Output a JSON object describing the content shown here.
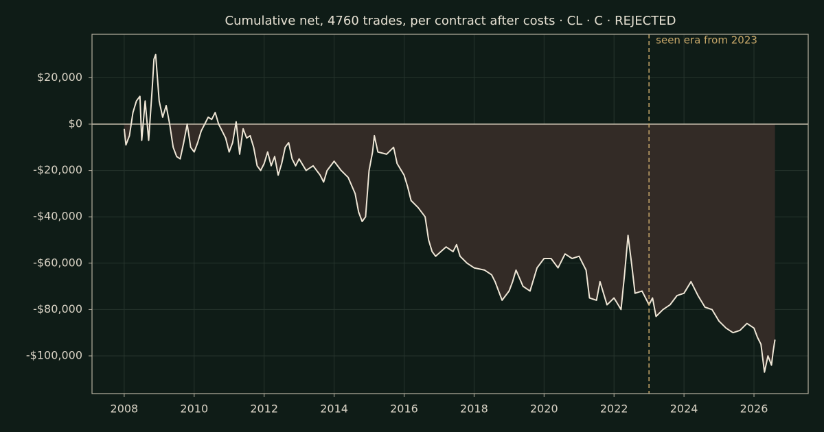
{
  "chart_data": {
    "type": "line",
    "title": "Cumulative net, 4760 trades, per contract after costs  ·  CL · C · REJECTED",
    "x": [
      2008.0,
      2008.05,
      2008.15,
      2008.25,
      2008.35,
      2008.45,
      2008.5,
      2008.6,
      2008.7,
      2008.8,
      2008.85,
      2008.9,
      2009.0,
      2009.1,
      2009.2,
      2009.3,
      2009.4,
      2009.5,
      2009.6,
      2009.7,
      2009.8,
      2009.9,
      2010.0,
      2010.1,
      2010.2,
      2010.3,
      2010.4,
      2010.5,
      2010.6,
      2010.7,
      2010.8,
      2010.9,
      2011.0,
      2011.1,
      2011.2,
      2011.3,
      2011.4,
      2011.5,
      2011.6,
      2011.7,
      2011.8,
      2011.9,
      2012.0,
      2012.1,
      2012.2,
      2012.3,
      2012.4,
      2012.5,
      2012.6,
      2012.7,
      2012.8,
      2012.9,
      2013.0,
      2013.2,
      2013.4,
      2013.6,
      2013.7,
      2013.8,
      2014.0,
      2014.2,
      2014.4,
      2014.6,
      2014.7,
      2014.8,
      2014.9,
      2015.0,
      2015.1,
      2015.15,
      2015.25,
      2015.5,
      2015.7,
      2015.8,
      2016.0,
      2016.1,
      2016.2,
      2016.4,
      2016.6,
      2016.7,
      2016.8,
      2016.9,
      2017.2,
      2017.4,
      2017.5,
      2017.6,
      2017.8,
      2018.0,
      2018.3,
      2018.5,
      2018.6,
      2018.8,
      2019.0,
      2019.1,
      2019.2,
      2019.4,
      2019.6,
      2019.8,
      2020.0,
      2020.2,
      2020.4,
      2020.6,
      2020.8,
      2021.0,
      2021.2,
      2021.3,
      2021.5,
      2021.6,
      2021.8,
      2022.0,
      2022.2,
      2022.3,
      2022.4,
      2022.5,
      2022.6,
      2022.8,
      2023.0,
      2023.1,
      2023.2,
      2023.4,
      2023.6,
      2023.8,
      2024.0,
      2024.2,
      2024.4,
      2024.6,
      2024.8,
      2025.0,
      2025.2,
      2025.4,
      2025.6,
      2025.8,
      2026.0,
      2026.1,
      2026.2,
      2026.3,
      2026.4,
      2026.5,
      2026.55,
      2026.6
    ],
    "series": [
      {
        "name": "Cumulative net",
        "color": "#efe6d6",
        "values": [
          -2000,
          -9000,
          -5000,
          5000,
          10000,
          12000,
          -7000,
          10000,
          -7000,
          15000,
          28000,
          30000,
          10000,
          3000,
          8000,
          0,
          -10000,
          -14000,
          -15000,
          -8000,
          0,
          -10000,
          -12000,
          -8000,
          -3000,
          0,
          3000,
          2000,
          5000,
          0,
          -3000,
          -6000,
          -12000,
          -8000,
          1000,
          -13000,
          -2000,
          -6000,
          -5000,
          -10000,
          -18000,
          -20000,
          -17000,
          -12000,
          -18000,
          -14000,
          -22000,
          -17000,
          -10000,
          -8000,
          -15000,
          -18000,
          -15000,
          -20000,
          -18000,
          -22000,
          -25000,
          -20000,
          -16000,
          -20000,
          -23000,
          -30000,
          -38000,
          -42000,
          -40000,
          -20000,
          -12000,
          -5000,
          -12000,
          -13000,
          -10000,
          -17000,
          -22000,
          -27000,
          -33000,
          -36000,
          -40000,
          -50000,
          -55000,
          -57000,
          -53000,
          -55000,
          -52000,
          -57000,
          -60000,
          -62000,
          -63000,
          -65000,
          -68000,
          -76000,
          -72000,
          -68000,
          -63000,
          -70000,
          -72000,
          -62000,
          -58000,
          -58000,
          -62000,
          -56000,
          -58000,
          -57000,
          -63000,
          -75000,
          -76000,
          -68000,
          -78000,
          -75000,
          -80000,
          -65000,
          -48000,
          -60000,
          -73000,
          -72000,
          -78000,
          -75000,
          -83000,
          -80000,
          -78000,
          -74000,
          -73000,
          -68000,
          -74000,
          -79000,
          -80000,
          -85000,
          -88000,
          -90000,
          -89000,
          -86000,
          -88000,
          -92000,
          -95000,
          -107000,
          -100000,
          -104000,
          -98000,
          -93000
        ]
      }
    ],
    "fill_color": "#332b26",
    "xlim": [
      2007.08,
      2027.55
    ],
    "xticks": [
      2008,
      2010,
      2012,
      2014,
      2016,
      2018,
      2020,
      2022,
      2024,
      2026
    ],
    "ylim": [
      -116272,
      38757
    ],
    "yticks": [
      {
        "value": -100000,
        "label": "-$100,000"
      },
      {
        "value": -80000,
        "label": "-$80,000"
      },
      {
        "value": -60000,
        "label": "-$60,000"
      },
      {
        "value": -40000,
        "label": "-$40,000"
      },
      {
        "value": -20000,
        "label": "-$20,000"
      },
      {
        "value": 0,
        "label": "$0"
      },
      {
        "value": 20000,
        "label": "$20,000"
      }
    ],
    "grid": true,
    "vline": {
      "x": 2023,
      "label": "seen era from 2023",
      "color": "#c8a86a"
    }
  }
}
